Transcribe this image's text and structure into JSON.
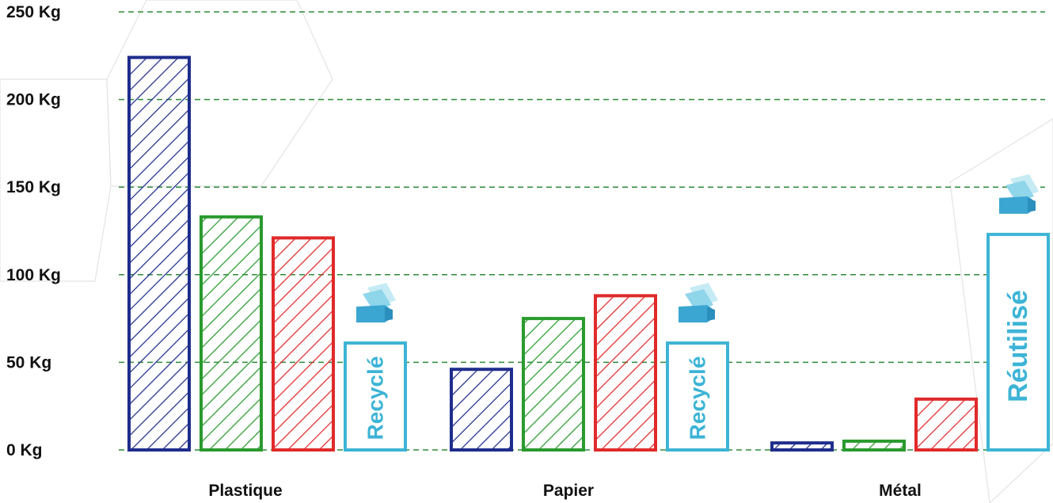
{
  "chart_data": {
    "type": "bar",
    "categories": [
      "Plastique",
      "Papier",
      "Métal"
    ],
    "y_unit": "Kg",
    "ylim": [
      0,
      250
    ],
    "yticks": [
      {
        "value": 0,
        "label": "0 Kg"
      },
      {
        "value": 50,
        "label": "50 Kg"
      },
      {
        "value": 100,
        "label": "100 Kg"
      },
      {
        "value": 150,
        "label": "150 Kg"
      },
      {
        "value": 200,
        "label": "200 Kg"
      },
      {
        "value": 250,
        "label": "250 Kg"
      }
    ],
    "grid": true,
    "series": [
      {
        "color": "#1e2d8c",
        "pattern": "hatched",
        "values": [
          224,
          46,
          4
        ]
      },
      {
        "color": "#2a9a2e",
        "pattern": "hatched",
        "values": [
          133,
          75,
          5
        ]
      },
      {
        "color": "#e02a2a",
        "pattern": "hatched",
        "values": [
          121,
          88,
          29
        ]
      },
      {
        "color": "#3db4d6",
        "pattern": "outline",
        "values": [
          61,
          61,
          123
        ],
        "labels": [
          "Recyclé",
          "Recyclé",
          "Réutilisé"
        ],
        "icon": "recycled-material-icon"
      }
    ]
  }
}
